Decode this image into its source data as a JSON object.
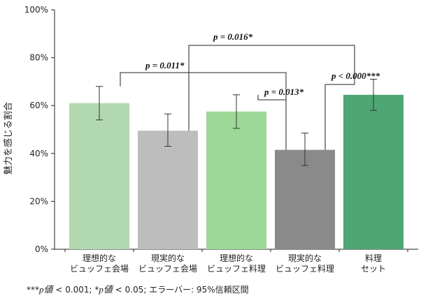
{
  "chart_data": {
    "type": "bar",
    "ylabel": "魅力を感じる割合",
    "ylim": [
      0,
      100
    ],
    "yticks": [
      "0%",
      "20%",
      "40%",
      "60%",
      "80%",
      "100%"
    ],
    "grid": false,
    "categories": [
      [
        "理想的な",
        "ビュッフェ会場"
      ],
      [
        "現実的な",
        "ビュッフェ会場"
      ],
      [
        "理想的な",
        "ビュッフェ料理"
      ],
      [
        "現実的な",
        "ビュッフェ料理"
      ],
      [
        "料理",
        "セット"
      ]
    ],
    "values": [
      61,
      49.5,
      57.5,
      41.5,
      64.5
    ],
    "error_low": [
      54,
      43,
      50.5,
      35,
      58
    ],
    "error_high": [
      68,
      56.5,
      64.5,
      48.5,
      71
    ],
    "colors": [
      "#b2d8b0",
      "#bdbdbd",
      "#9cd896",
      "#8a8a8a",
      "#4ea673"
    ],
    "significance": [
      {
        "from": 0,
        "to": 3,
        "label": "p = 0.011*"
      },
      {
        "from": 1,
        "to": 4,
        "label": "p = 0.016*"
      },
      {
        "from": 2,
        "to": 3,
        "label": "p = 0.013*"
      },
      {
        "from": 3,
        "to": 4,
        "label": "p < 0.000***"
      }
    ]
  },
  "footnote": {
    "p1": "***",
    "pval1": "p値",
    "t1": " < 0.001; *",
    "pval2": "p値",
    "t2": " < 0.05; エラーバー: 95%信頼区間"
  }
}
